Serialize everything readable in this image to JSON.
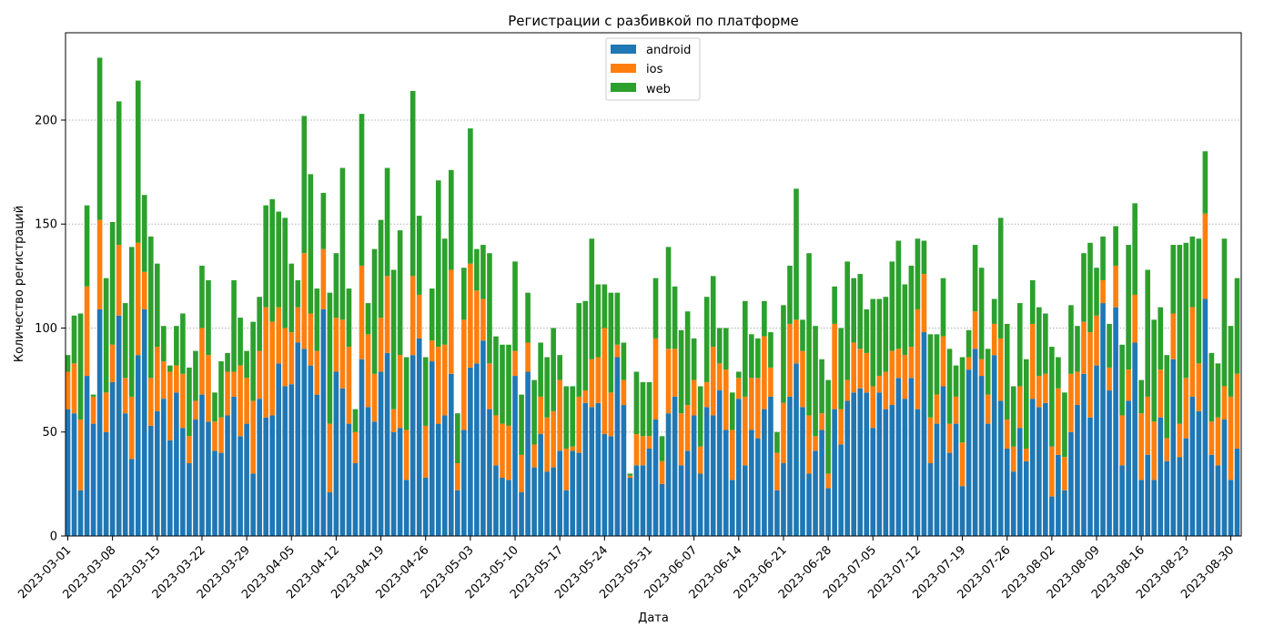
{
  "chart_data": {
    "type": "bar",
    "stacked": true,
    "title": "Регистрации с разбивкой по платформе",
    "xlabel": "Дата",
    "ylabel": "Количество регистраций",
    "ylim": [
      0,
      242
    ],
    "yticks": [
      0,
      50,
      100,
      150,
      200
    ],
    "grid": "horizontal dotted",
    "legend_position": "top-center",
    "x_start": "2023-03-01",
    "x_end": "2023-08-30",
    "xtick_labels": [
      "2023-03-01",
      "2023-03-08",
      "2023-03-15",
      "2023-03-22",
      "2023-03-29",
      "2023-04-05",
      "2023-04-12",
      "2023-04-19",
      "2023-04-26",
      "2023-05-03",
      "2023-05-10",
      "2023-05-17",
      "2023-05-24",
      "2023-05-31",
      "2023-06-07",
      "2023-06-14",
      "2023-06-21",
      "2023-06-28",
      "2023-07-05",
      "2023-07-12",
      "2023-07-19",
      "2023-07-26",
      "2023-08-02",
      "2023-08-09",
      "2023-08-16",
      "2023-08-23",
      "2023-08-30"
    ],
    "series": [
      {
        "name": "android",
        "color": "#1f77b4",
        "values": [
          61,
          59,
          22,
          77,
          54,
          109,
          50,
          74,
          106,
          59,
          37,
          87,
          109,
          53,
          60,
          66,
          46,
          69,
          52,
          35,
          56,
          68,
          55,
          41,
          40,
          58,
          67,
          48,
          54,
          30,
          66,
          57,
          58,
          83,
          72,
          73,
          93,
          90,
          82,
          68,
          109,
          21,
          79,
          71,
          54,
          35,
          85,
          62,
          55,
          79,
          88,
          50,
          52,
          27,
          87,
          95,
          28,
          84,
          54,
          58,
          78,
          22,
          51,
          81,
          83,
          94,
          61,
          34,
          28,
          27,
          77,
          21,
          79,
          33,
          49,
          31,
          33,
          41,
          22,
          41,
          40,
          64,
          62,
          64,
          49,
          48,
          86,
          63,
          28,
          34,
          34,
          42,
          56,
          25,
          59,
          67,
          34,
          41,
          58,
          30,
          62,
          58,
          70,
          51,
          27,
          66,
          34,
          51,
          47,
          61,
          67,
          22,
          35,
          67,
          83,
          62,
          30,
          41,
          51,
          23,
          61,
          44,
          65,
          69,
          71,
          69,
          52,
          69,
          61,
          63,
          76,
          66,
          76,
          61,
          98,
          35,
          54,
          72,
          40,
          54,
          24,
          80,
          90,
          77,
          54,
          87,
          65,
          42,
          31,
          52,
          36,
          66,
          62,
          64,
          19,
          39,
          22,
          50,
          63,
          78,
          57,
          82,
          112,
          70,
          110,
          34,
          65,
          93,
          27,
          39,
          27,
          57,
          36,
          85,
          38,
          47,
          67,
          60,
          114,
          39,
          34,
          56,
          27,
          42
        ]
      },
      {
        "name": "ios",
        "color": "#ff7f0e",
        "values": [
          18,
          24,
          34,
          43,
          13,
          43,
          19,
          18,
          34,
          17,
          30,
          54,
          18,
          23,
          31,
          18,
          33,
          13,
          26,
          13,
          9,
          32,
          32,
          14,
          17,
          21,
          12,
          34,
          22,
          35,
          23,
          53,
          45,
          27,
          28,
          25,
          17,
          46,
          25,
          21,
          29,
          33,
          26,
          33,
          37,
          15,
          45,
          35,
          23,
          26,
          37,
          11,
          35,
          24,
          38,
          21,
          25,
          10,
          37,
          34,
          50,
          13,
          53,
          50,
          35,
          20,
          22,
          24,
          26,
          26,
          12,
          18,
          14,
          11,
          18,
          26,
          27,
          34,
          20,
          2,
          27,
          6,
          23,
          22,
          51,
          21,
          6,
          12,
          1,
          15,
          14,
          6,
          39,
          11,
          31,
          23,
          25,
          22,
          17,
          13,
          12,
          33,
          13,
          29,
          24,
          10,
          33,
          25,
          29,
          35,
          14,
          18,
          29,
          35,
          21,
          27,
          28,
          7,
          8,
          7,
          41,
          17,
          10,
          24,
          19,
          19,
          20,
          8,
          18,
          26,
          14,
          21,
          15,
          48,
          28,
          22,
          14,
          24,
          14,
          13,
          21,
          6,
          18,
          8,
          14,
          15,
          30,
          14,
          12,
          20,
          6,
          36,
          15,
          14,
          24,
          32,
          16,
          28,
          16,
          25,
          41,
          24,
          11,
          11,
          20,
          24,
          15,
          23,
          32,
          28,
          28,
          23,
          11,
          22,
          16,
          29,
          43,
          23,
          41,
          16,
          23,
          16,
          40,
          36
        ]
      },
      {
        "name": "web",
        "color": "#2ca02c",
        "values": [
          8,
          23,
          51,
          39,
          1,
          78,
          55,
          59,
          69,
          36,
          72,
          78,
          37,
          68,
          40,
          17,
          3,
          19,
          29,
          33,
          24,
          30,
          36,
          14,
          27,
          9,
          44,
          23,
          13,
          38,
          26,
          49,
          59,
          46,
          53,
          33,
          13,
          66,
          67,
          30,
          27,
          63,
          31,
          73,
          28,
          11,
          73,
          15,
          60,
          47,
          52,
          67,
          60,
          35,
          89,
          38,
          33,
          25,
          80,
          51,
          48,
          24,
          25,
          65,
          20,
          26,
          53,
          38,
          38,
          39,
          43,
          29,
          24,
          31,
          26,
          29,
          40,
          12,
          30,
          29,
          45,
          43,
          58,
          35,
          21,
          48,
          25,
          18,
          1,
          30,
          26,
          26,
          29,
          12,
          49,
          30,
          40,
          45,
          20,
          29,
          41,
          34,
          17,
          20,
          18,
          3,
          46,
          21,
          19,
          17,
          17,
          10,
          47,
          28,
          63,
          15,
          78,
          53,
          26,
          45,
          18,
          39,
          57,
          31,
          36,
          21,
          42,
          37,
          36,
          43,
          52,
          34,
          39,
          34,
          16,
          40,
          29,
          28,
          36,
          15,
          41,
          13,
          32,
          44,
          22,
          12,
          58,
          46,
          29,
          40,
          43,
          21,
          33,
          29,
          48,
          15,
          31,
          33,
          22,
          33,
          43,
          23,
          21,
          21,
          19,
          34,
          60,
          44,
          16,
          61,
          49,
          30,
          40,
          33,
          86,
          65,
          34,
          60,
          30,
          33,
          26,
          71,
          34,
          46
        ]
      }
    ]
  }
}
